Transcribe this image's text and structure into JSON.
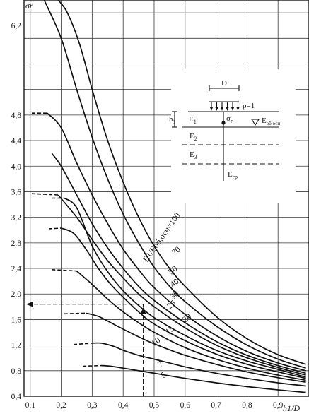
{
  "chart_data": {
    "type": "line",
    "title": "",
    "ylabel": "σr",
    "xlabel": "h1/D",
    "xlim": [
      0.08,
      1.0
    ],
    "ylim": [
      0.4,
      6.6
    ],
    "x_ticks": [
      "0,1",
      "0,2",
      "0,3",
      "0,4",
      "0,5",
      "0,6",
      "0,7",
      "0,8",
      "0,9"
    ],
    "y_ticks": [
      "0,4",
      "0,8",
      "1,2",
      "1,6",
      "2,0",
      "2,4",
      "2,8",
      "3,2",
      "3,6",
      "4,0",
      "4,4",
      "4,8",
      "6,2"
    ],
    "y_tick_values": [
      0.4,
      0.8,
      1.2,
      1.6,
      2.0,
      2.4,
      2.8,
      3.2,
      3.6,
      4.0,
      4.4,
      4.8,
      6.2
    ],
    "grid": true,
    "series_label_prefix": "E1/Eоб.осн=",
    "series": [
      {
        "name": "100",
        "lead": [],
        "x": [
          0.19,
          0.22,
          0.26,
          0.3,
          0.35,
          0.4,
          0.45,
          0.5,
          0.55,
          0.6,
          0.7,
          0.8,
          0.9,
          0.99
        ],
        "y": [
          6.6,
          6.4,
          5.9,
          5.2,
          4.4,
          3.75,
          3.2,
          2.75,
          2.4,
          2.12,
          1.65,
          1.3,
          1.05,
          0.9
        ]
      },
      {
        "name": "70",
        "lead": [],
        "x": [
          0.145,
          0.2,
          0.25,
          0.3,
          0.35,
          0.4,
          0.45,
          0.5,
          0.55,
          0.6,
          0.7,
          0.8,
          0.9,
          0.99
        ],
        "y": [
          6.6,
          6.0,
          5.2,
          4.45,
          3.8,
          3.25,
          2.8,
          2.42,
          2.12,
          1.88,
          1.5,
          1.2,
          0.98,
          0.84
        ]
      },
      {
        "name": "50",
        "lead": [
          {
            "x": 0.105,
            "y": 4.83
          },
          {
            "x": 0.155,
            "y": 4.83
          }
        ],
        "x": [
          0.155,
          0.2,
          0.25,
          0.3,
          0.35,
          0.4,
          0.45,
          0.5,
          0.6,
          0.7,
          0.8,
          0.9,
          0.99
        ],
        "y": [
          4.83,
          4.6,
          4.05,
          3.55,
          3.1,
          2.7,
          2.38,
          2.1,
          1.68,
          1.35,
          1.1,
          0.92,
          0.8
        ]
      },
      {
        "name": "40",
        "lead": [],
        "x": [
          0.17,
          0.2,
          0.25,
          0.3,
          0.35,
          0.4,
          0.45,
          0.5,
          0.6,
          0.7,
          0.8,
          0.9,
          0.99
        ],
        "y": [
          4.2,
          4.0,
          3.55,
          3.1,
          2.72,
          2.4,
          2.12,
          1.9,
          1.55,
          1.26,
          1.04,
          0.88,
          0.76
        ]
      },
      {
        "name": "30",
        "lead": [
          {
            "x": 0.105,
            "y": 3.57
          },
          {
            "x": 0.19,
            "y": 3.55
          }
        ],
        "x": [
          0.19,
          0.25,
          0.3,
          0.35,
          0.4,
          0.45,
          0.5,
          0.6,
          0.7,
          0.8,
          0.9,
          0.99
        ],
        "y": [
          3.55,
          3.2,
          2.85,
          2.52,
          2.25,
          2.0,
          1.8,
          1.47,
          1.2,
          1.0,
          0.85,
          0.73
        ]
      },
      {
        "name": "25",
        "lead": [
          {
            "x": 0.17,
            "y": 3.5
          },
          {
            "x": 0.21,
            "y": 3.5
          }
        ],
        "x": [
          0.21,
          0.25,
          0.3,
          0.35,
          0.4,
          0.45,
          0.5,
          0.6,
          0.7,
          0.8,
          0.9,
          0.99
        ],
        "y": [
          3.5,
          3.35,
          2.75,
          2.35,
          2.05,
          1.82,
          1.63,
          1.35,
          1.12,
          0.95,
          0.82,
          0.7
        ]
      },
      {
        "name": "20",
        "lead": [
          {
            "x": 0.16,
            "y": 3.02
          },
          {
            "x": 0.2,
            "y": 3.03
          }
        ],
        "x": [
          0.2,
          0.24,
          0.28,
          0.32,
          0.36,
          0.4,
          0.45,
          0.5,
          0.6,
          0.7,
          0.8,
          0.9,
          0.99
        ],
        "y": [
          3.03,
          2.95,
          2.7,
          2.4,
          2.15,
          1.95,
          1.72,
          1.53,
          1.27,
          1.06,
          0.9,
          0.78,
          0.68
        ]
      },
      {
        "name": "15",
        "lead": [
          {
            "x": 0.17,
            "y": 2.38
          },
          {
            "x": 0.25,
            "y": 2.36
          }
        ],
        "x": [
          0.25,
          0.3,
          0.35,
          0.4,
          0.45,
          0.5,
          0.6,
          0.7,
          0.8,
          0.9,
          0.99
        ],
        "y": [
          2.36,
          2.15,
          1.92,
          1.72,
          1.55,
          1.4,
          1.16,
          0.98,
          0.84,
          0.73,
          0.65
        ]
      },
      {
        "name": "10",
        "lead": [
          {
            "x": 0.21,
            "y": 1.69
          },
          {
            "x": 0.28,
            "y": 1.7
          }
        ],
        "x": [
          0.28,
          0.32,
          0.36,
          0.4,
          0.45,
          0.5,
          0.6,
          0.7,
          0.8,
          0.9,
          0.99
        ],
        "y": [
          1.7,
          1.65,
          1.55,
          1.45,
          1.33,
          1.22,
          1.04,
          0.9,
          0.78,
          0.69,
          0.62
        ]
      },
      {
        "name": "7",
        "lead": [
          {
            "x": 0.24,
            "y": 1.21
          },
          {
            "x": 0.3,
            "y": 1.23
          }
        ],
        "x": [
          0.3,
          0.33,
          0.37,
          0.4,
          0.45,
          0.5,
          0.6,
          0.7,
          0.8,
          0.9,
          0.99
        ],
        "y": [
          1.23,
          1.23,
          1.18,
          1.12,
          1.04,
          0.98,
          0.86,
          0.76,
          0.68,
          0.61,
          0.56
        ]
      },
      {
        "name": "5",
        "lead": [
          {
            "x": 0.27,
            "y": 0.87
          },
          {
            "x": 0.33,
            "y": 0.88
          }
        ],
        "x": [
          0.33,
          0.36,
          0.4,
          0.45,
          0.5,
          0.6,
          0.7,
          0.8,
          0.9,
          0.99
        ],
        "y": [
          0.88,
          0.87,
          0.84,
          0.8,
          0.76,
          0.68,
          0.61,
          0.55,
          0.5,
          0.46
        ]
      }
    ],
    "annotations": {
      "example_path": {
        "from": {
          "x": 0.465,
          "y": 0.4
        },
        "to": {
          "x": 0.465,
          "y": 1.84
        },
        "end": {
          "x": 0.08,
          "y": 1.84
        }
      }
    }
  },
  "scheme": {
    "d_label": "D",
    "p_label": "p=1",
    "h_label": "h",
    "h_sub": "1",
    "sigma_label": "σ",
    "sigma_sub": "r",
    "layers": [
      {
        "main": "E",
        "sub": "1"
      },
      {
        "main": "E",
        "sub": "2"
      },
      {
        "main": "E",
        "sub": "3"
      }
    ],
    "base": {
      "main": "E",
      "sub": "об.осн"
    },
    "ground": {
      "main": "E",
      "sub": "гр"
    }
  }
}
